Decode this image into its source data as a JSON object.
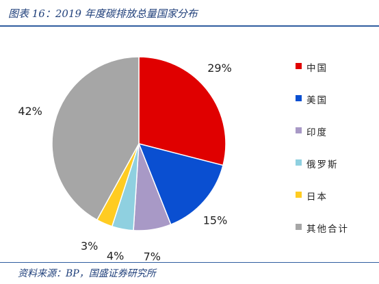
{
  "figure": {
    "title": "图表 16：2019 年度碳排放总量国家分布",
    "source": "资料来源：BP，国盛证券研究所"
  },
  "chart_data": {
    "type": "pie",
    "categories": [
      "中国",
      "美国",
      "印度",
      "俄罗斯",
      "日本",
      "其他合计"
    ],
    "values": [
      29,
      15,
      7,
      4,
      3,
      42
    ],
    "labels": [
      "29%",
      "15%",
      "7%",
      "4%",
      "3%",
      "42%"
    ],
    "colors": [
      "#e00000",
      "#0a4fd1",
      "#a899c6",
      "#8fd0e0",
      "#ffcc22",
      "#a6a6a6"
    ],
    "unit": "%",
    "start": "12 o'clock, clockwise",
    "legend": "right"
  }
}
